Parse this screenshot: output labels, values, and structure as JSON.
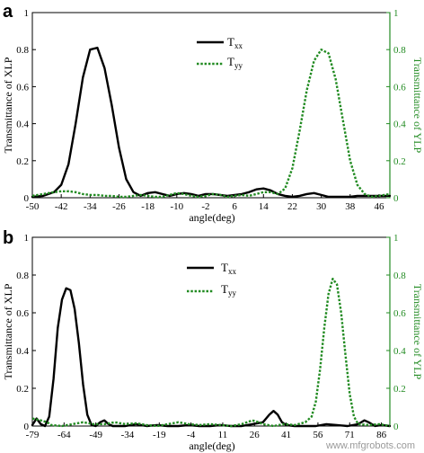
{
  "watermark": "www.mfgrobots.com",
  "colors": {
    "txx": "#000000",
    "tyy": "#228B22",
    "left_axis": "#000000",
    "right_axis": "#228B22"
  },
  "chart_data": [
    {
      "type": "line",
      "panel_label": "a",
      "xlabel": "angle(deg)",
      "ylabel_left": "Transmittance of XLP",
      "ylabel_right": "Transmittance of YLP",
      "xlim": [
        -50,
        49
      ],
      "ylim_left": [
        0,
        1
      ],
      "ylim_right": [
        0,
        1
      ],
      "x_ticks": [
        -50,
        -42,
        -34,
        -26,
        -18,
        -10,
        -2,
        6,
        14,
        22,
        30,
        38,
        46
      ],
      "y_ticks_left": [
        "0",
        "0.2",
        "0.4",
        "0.6",
        "0.8",
        "1"
      ],
      "y_ticks_right": [
        "0",
        "0.2",
        "0.4",
        "0.6",
        "0.8",
        "1"
      ],
      "legend": {
        "position": "top-center"
      },
      "series": [
        {
          "name": "T",
          "subscript": "xx",
          "style": "solid",
          "color": "#000000",
          "x": [
            -50,
            -47,
            -44,
            -42,
            -40,
            -38,
            -36,
            -34,
            -32,
            -30,
            -28,
            -26,
            -24,
            -22,
            -20,
            -18,
            -16,
            -14,
            -12,
            -10,
            -8,
            -6,
            -4,
            -2,
            0,
            2,
            4,
            6,
            8,
            10,
            12,
            14,
            16,
            18,
            20,
            22,
            24,
            26,
            28,
            30,
            32,
            34,
            36,
            38,
            40,
            42,
            44,
            46,
            49
          ],
          "y": [
            0.005,
            0.01,
            0.03,
            0.07,
            0.18,
            0.4,
            0.65,
            0.8,
            0.81,
            0.7,
            0.5,
            0.27,
            0.1,
            0.03,
            0.01,
            0.025,
            0.03,
            0.02,
            0.01,
            0.02,
            0.025,
            0.02,
            0.01,
            0.02,
            0.02,
            0.015,
            0.01,
            0.015,
            0.02,
            0.03,
            0.045,
            0.05,
            0.04,
            0.02,
            0.01,
            0.005,
            0.01,
            0.02,
            0.025,
            0.015,
            0.005,
            0.005,
            0.005,
            0.005,
            0.01,
            0.01,
            0.01,
            0.01,
            0.01
          ]
        },
        {
          "name": "T",
          "subscript": "yy",
          "style": "dotted",
          "color": "#228B22",
          "x": [
            -50,
            -47,
            -44,
            -42,
            -40,
            -38,
            -36,
            -34,
            -32,
            -30,
            -28,
            -26,
            -24,
            -22,
            -20,
            -18,
            -16,
            -14,
            -12,
            -10,
            -8,
            -6,
            -4,
            -2,
            0,
            2,
            4,
            6,
            8,
            10,
            12,
            14,
            16,
            18,
            20,
            22,
            24,
            26,
            28,
            30,
            32,
            34,
            36,
            38,
            40,
            42,
            44,
            46,
            49
          ],
          "y": [
            0.01,
            0.02,
            0.03,
            0.035,
            0.035,
            0.03,
            0.02,
            0.015,
            0.015,
            0.01,
            0.01,
            0.005,
            0.005,
            0.01,
            0.015,
            0.01,
            0.005,
            0.005,
            0.015,
            0.025,
            0.02,
            0.01,
            0.005,
            0.01,
            0.02,
            0.015,
            0.005,
            0.01,
            0.015,
            0.01,
            0.02,
            0.03,
            0.03,
            0.02,
            0.05,
            0.16,
            0.36,
            0.58,
            0.74,
            0.8,
            0.78,
            0.64,
            0.42,
            0.2,
            0.07,
            0.02,
            0.005,
            0.01,
            0.02
          ]
        }
      ]
    },
    {
      "type": "line",
      "panel_label": "b",
      "xlabel": "angle(deg)",
      "ylabel_left": "Transmittance of XLP",
      "ylabel_right": "Transmittance of YLP",
      "xlim": [
        -79,
        90
      ],
      "ylim_left": [
        0,
        1
      ],
      "ylim_right": [
        0,
        1
      ],
      "x_ticks": [
        -79,
        -64,
        -49,
        -34,
        -19,
        -4,
        11,
        26,
        41,
        56,
        71,
        86
      ],
      "y_ticks_left": [
        "0",
        "0.2",
        "0.4",
        "0.6",
        "0.8",
        "1"
      ],
      "y_ticks_right": [
        "0",
        "0.2",
        "0.4",
        "0.6",
        "0.8",
        "1"
      ],
      "legend": {
        "position": "top-center"
      },
      "series": [
        {
          "name": "T",
          "subscript": "xx",
          "style": "solid",
          "color": "#000000",
          "x": [
            -79,
            -77,
            -75,
            -73,
            -71,
            -69,
            -67,
            -65,
            -63,
            -61,
            -59,
            -57,
            -55,
            -53,
            -51,
            -49,
            -47,
            -45,
            -43,
            -41,
            -35,
            -30,
            -25,
            -20,
            -15,
            -10,
            -5,
            0,
            5,
            10,
            15,
            20,
            25,
            30,
            33,
            35,
            37,
            39,
            41,
            45,
            50,
            55,
            60,
            65,
            70,
            75,
            78,
            80,
            83,
            86,
            90
          ],
          "y": [
            0.005,
            0.04,
            0.01,
            0.0,
            0.05,
            0.25,
            0.52,
            0.67,
            0.73,
            0.72,
            0.62,
            0.44,
            0.22,
            0.06,
            0.005,
            0.0,
            0.02,
            0.03,
            0.01,
            0.0,
            0.0,
            0.01,
            0.0,
            0.005,
            0.0,
            0.0,
            0.005,
            0.0,
            0.0,
            0.005,
            0.0,
            0.0,
            0.01,
            0.02,
            0.06,
            0.08,
            0.06,
            0.02,
            0.005,
            0.0,
            0.0,
            0.0,
            0.01,
            0.005,
            0.0,
            0.01,
            0.03,
            0.02,
            0.0,
            0.005,
            0.0
          ]
        },
        {
          "name": "T",
          "subscript": "yy",
          "style": "dotted",
          "color": "#228B22",
          "x": [
            -79,
            -75,
            -72,
            -70,
            -65,
            -60,
            -55,
            -50,
            -45,
            -40,
            -35,
            -30,
            -25,
            -20,
            -15,
            -10,
            -5,
            0,
            5,
            10,
            15,
            20,
            25,
            28,
            30,
            35,
            40,
            45,
            50,
            53,
            55,
            57,
            59,
            61,
            63,
            65,
            67,
            69,
            71,
            73,
            75,
            80,
            85,
            90
          ],
          "y": [
            0.04,
            0.03,
            0.02,
            0.005,
            0.0,
            0.01,
            0.02,
            0.01,
            0.01,
            0.02,
            0.01,
            0.015,
            0.005,
            0.0,
            0.01,
            0.02,
            0.01,
            0.005,
            0.01,
            0.005,
            0.0,
            0.01,
            0.03,
            0.02,
            0.01,
            0.0,
            0.01,
            0.005,
            0.02,
            0.05,
            0.13,
            0.3,
            0.52,
            0.7,
            0.78,
            0.75,
            0.6,
            0.38,
            0.17,
            0.05,
            0.01,
            0.005,
            0.01,
            0.0
          ]
        }
      ]
    }
  ]
}
